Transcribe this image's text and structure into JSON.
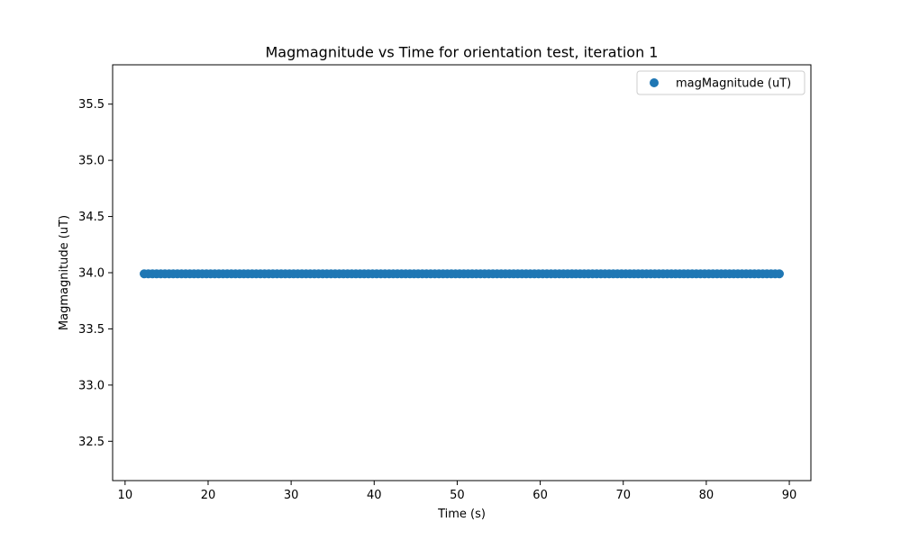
{
  "chart_data": {
    "type": "scatter",
    "title": "Magmagnitude vs Time for orientation test, iteration 1",
    "xlabel": "Time (s)",
    "ylabel": "Magmagnitude (uT)",
    "xlim": [
      8.5,
      92.6
    ],
    "ylim": [
      32.15,
      35.85
    ],
    "xticks": [
      10,
      20,
      30,
      40,
      50,
      60,
      70,
      80,
      90
    ],
    "yticks": [
      32.5,
      33.0,
      33.5,
      34.0,
      34.5,
      35.0,
      35.5
    ],
    "xtick_labels": [
      "10",
      "20",
      "30",
      "40",
      "50",
      "60",
      "70",
      "80",
      "90"
    ],
    "ytick_labels": [
      "32.5",
      "33.0",
      "33.5",
      "34.0",
      "34.5",
      "35.0",
      "35.5"
    ],
    "grid": false,
    "legend_position": "top-right",
    "series": [
      {
        "name": "magMagnitude (uT)",
        "color": "#1f77b4",
        "marker": "circle",
        "x_start": 12.3,
        "x_end": 88.8,
        "x_step": 0.5,
        "y_value": 33.99
      }
    ]
  }
}
